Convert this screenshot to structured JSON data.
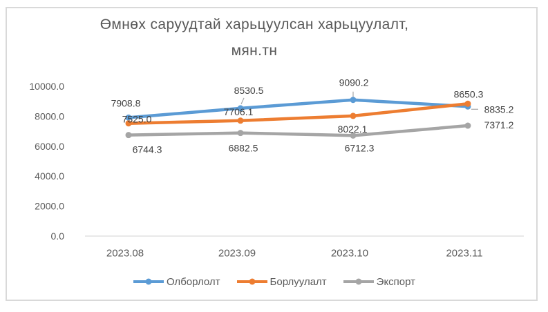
{
  "chart_data": {
    "type": "line",
    "title": "Өмнөх саруудтай харьцуулсан харьцуулалт, мян.тн",
    "title_lines": [
      "Өмнөх саруудтай харьцуулсан харьцуулалт,",
      "мян.тн"
    ],
    "categories": [
      "2023.08",
      "2023.09",
      "2023.10",
      "2023.11"
    ],
    "series": [
      {
        "name": "Олборлолт",
        "color": "#5B9BD5",
        "values": [
          7908.8,
          8530.5,
          9090.2,
          8650.3
        ]
      },
      {
        "name": "Борлуулалт",
        "color": "#ED7D31",
        "values": [
          7525.0,
          7706.1,
          8022.1,
          8835.2
        ]
      },
      {
        "name": "Экспорт",
        "color": "#A5A5A5",
        "values": [
          6744.3,
          6882.5,
          6712.3,
          7371.2
        ]
      }
    ],
    "ylim": [
      0,
      10000
    ],
    "ytick_labels": [
      "0.0",
      "2000.0",
      "4000.0",
      "6000.0",
      "8000.0",
      "10000.0"
    ],
    "grid": false,
    "legend_position": "bottom",
    "data_labels": true,
    "data_label_decimals": 1
  },
  "colors": {
    "background": "#FFFFFF",
    "frame_border": "#D9D9D9",
    "axis_line": "#D9D9D9",
    "leader_line": "#A6A6A6",
    "axis_text": "#595959",
    "title_text": "#595959",
    "data_label_text": "#404040",
    "legend_text": "#595959"
  }
}
